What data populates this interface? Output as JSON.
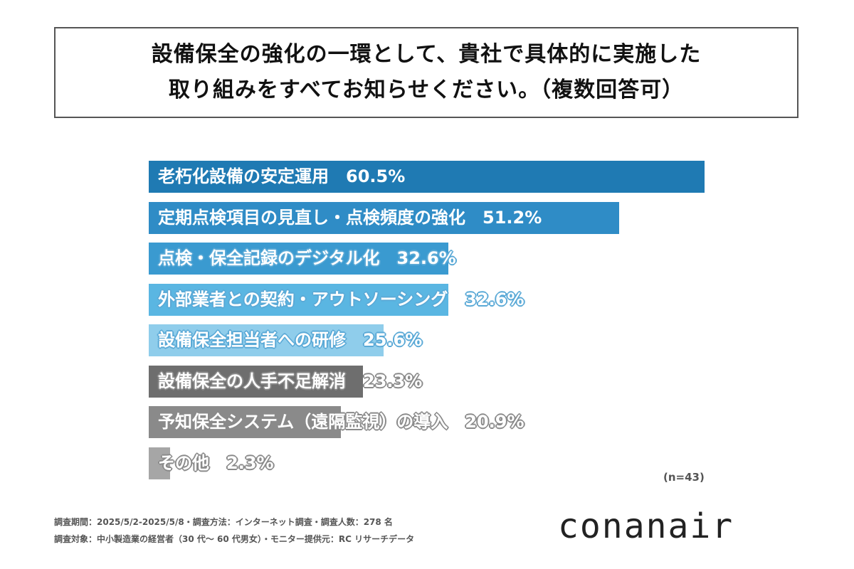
{
  "title_lines": [
    "設備保全の強化の一環として、貴社で具体的に実施した",
    "取り組みをすべてお知らせください。（複数回答可）"
  ],
  "chart_data": {
    "type": "bar",
    "orientation": "horizontal",
    "title": "設備保全の強化の一環として、貴社で具体的に実施した取り組みをすべてお知らせください。（複数回答可）",
    "categories": [
      "老朽化設備の安定運用",
      "定期点検項目の見直し・点検頻度の強化",
      "点検・保全記録のデジタル化",
      "外部業者との契約・アウトソーシング",
      "設備保全担当者への研修",
      "設備保全の人手不足解消",
      "予知保全システム（遠隔監視）の導入",
      "その他"
    ],
    "values": [
      60.5,
      51.2,
      32.6,
      32.6,
      25.6,
      23.3,
      20.9,
      2.3
    ],
    "value_labels": [
      "60.5%",
      "51.2%",
      "32.6%",
      "32.6%",
      "25.6%",
      "23.3%",
      "20.9%",
      "2.3%"
    ],
    "colors": [
      "#1f7ab3",
      "#2f8cc6",
      "#3a9ad0",
      "#5ab6e2",
      "#8fcdeb",
      "#6e6e6e",
      "#8a8a8a",
      "#a6a6a6"
    ],
    "xlim": [
      0,
      60.5
    ],
    "sample_size": "(n=43)"
  },
  "footnotes": [
    "調査期間：2025/5/2-2025/5/8・調査方法：インターネット調査・調査人数：278 名",
    "調査対象：中小製造業の経営者（30 代～ 60 代男女）・モニター提供元：RC リサーチデータ"
  ],
  "logo": "conanair"
}
